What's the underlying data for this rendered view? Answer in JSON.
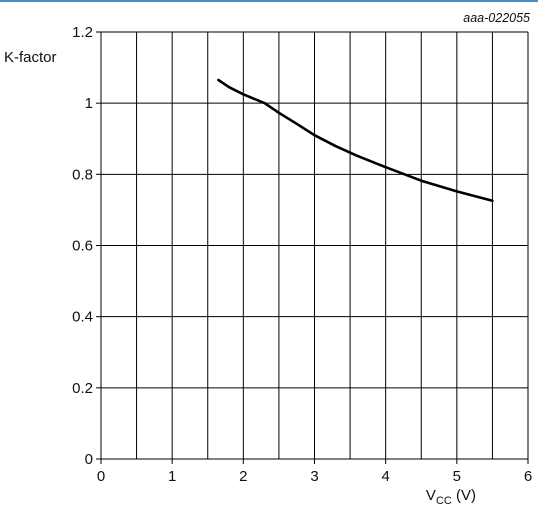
{
  "figure_id": "aaa-022055",
  "colors": {
    "top_rule": "#4a8fc0",
    "grid": "#000000",
    "curve": "#000000",
    "text": "#111111"
  },
  "chart_data": {
    "type": "line",
    "title": "",
    "xlabel": {
      "main": "V",
      "sub": "CC",
      "unit": " (V)"
    },
    "ylabel": "K-factor",
    "xlim": [
      0,
      6
    ],
    "ylim": [
      0,
      1.2
    ],
    "x_ticks": [
      0,
      1,
      2,
      3,
      4,
      5,
      6
    ],
    "x_tick_labels": [
      "0",
      "1",
      "2",
      "3",
      "4",
      "5",
      "6"
    ],
    "x_minor_step": 0.5,
    "y_ticks": [
      0,
      0.2,
      0.4,
      0.6,
      0.8,
      1.0,
      1.2
    ],
    "y_tick_labels": [
      "0",
      "0.2",
      "0.4",
      "0.6",
      "0.8",
      "1",
      "1.2"
    ],
    "grid": true,
    "series": [
      {
        "x": [
          1.65,
          1.8,
          2.0,
          2.3,
          2.5,
          2.75,
          3.0,
          3.3,
          3.6,
          4.0,
          4.5,
          5.0,
          5.5
        ],
        "values": [
          1.065,
          1.045,
          1.025,
          1.0,
          0.973,
          0.942,
          0.91,
          0.879,
          0.852,
          0.82,
          0.782,
          0.752,
          0.726
        ]
      }
    ]
  }
}
